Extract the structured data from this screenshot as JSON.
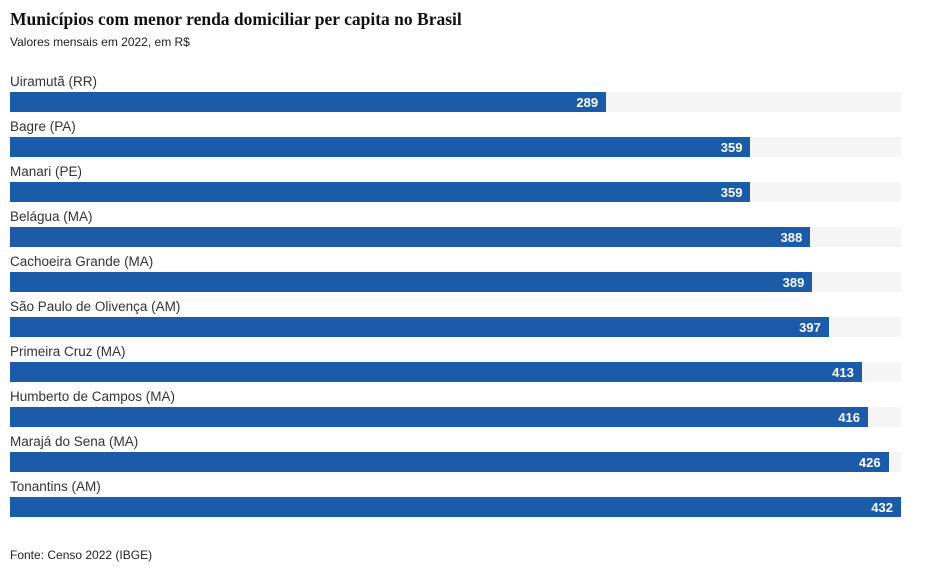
{
  "header": {
    "title": "Municípios com menor renda domiciliar per capita no Brasil",
    "subtitle": "Valores mensais em 2022, em R$"
  },
  "chart_data": {
    "type": "bar",
    "orientation": "horizontal",
    "title": "Municípios com menor renda domiciliar per capita no Brasil",
    "subtitle": "Valores mensais em 2022, em R$",
    "xlabel": "",
    "ylabel": "",
    "xlim": [
      0,
      432
    ],
    "grid": false,
    "legend": false,
    "categories": [
      "Uiramutã (RR)",
      "Bagre (PA)",
      "Manari (PE)",
      "Belágua (MA)",
      "Cachoeira Grande (MA)",
      "São Paulo de Olivença (AM)",
      "Primeira Cruz (MA)",
      "Humberto de Campos (MA)",
      "Marajá do Sena (MA)",
      "Tonantins (AM)"
    ],
    "values": [
      289,
      359,
      359,
      388,
      389,
      397,
      413,
      416,
      426,
      432
    ],
    "bar_color": "#1b5ba8",
    "track_color": "#f5f5f5",
    "value_label_color": "#ffffff"
  },
  "footer": {
    "source": "Fonte: Censo 2022 (IBGE)"
  }
}
